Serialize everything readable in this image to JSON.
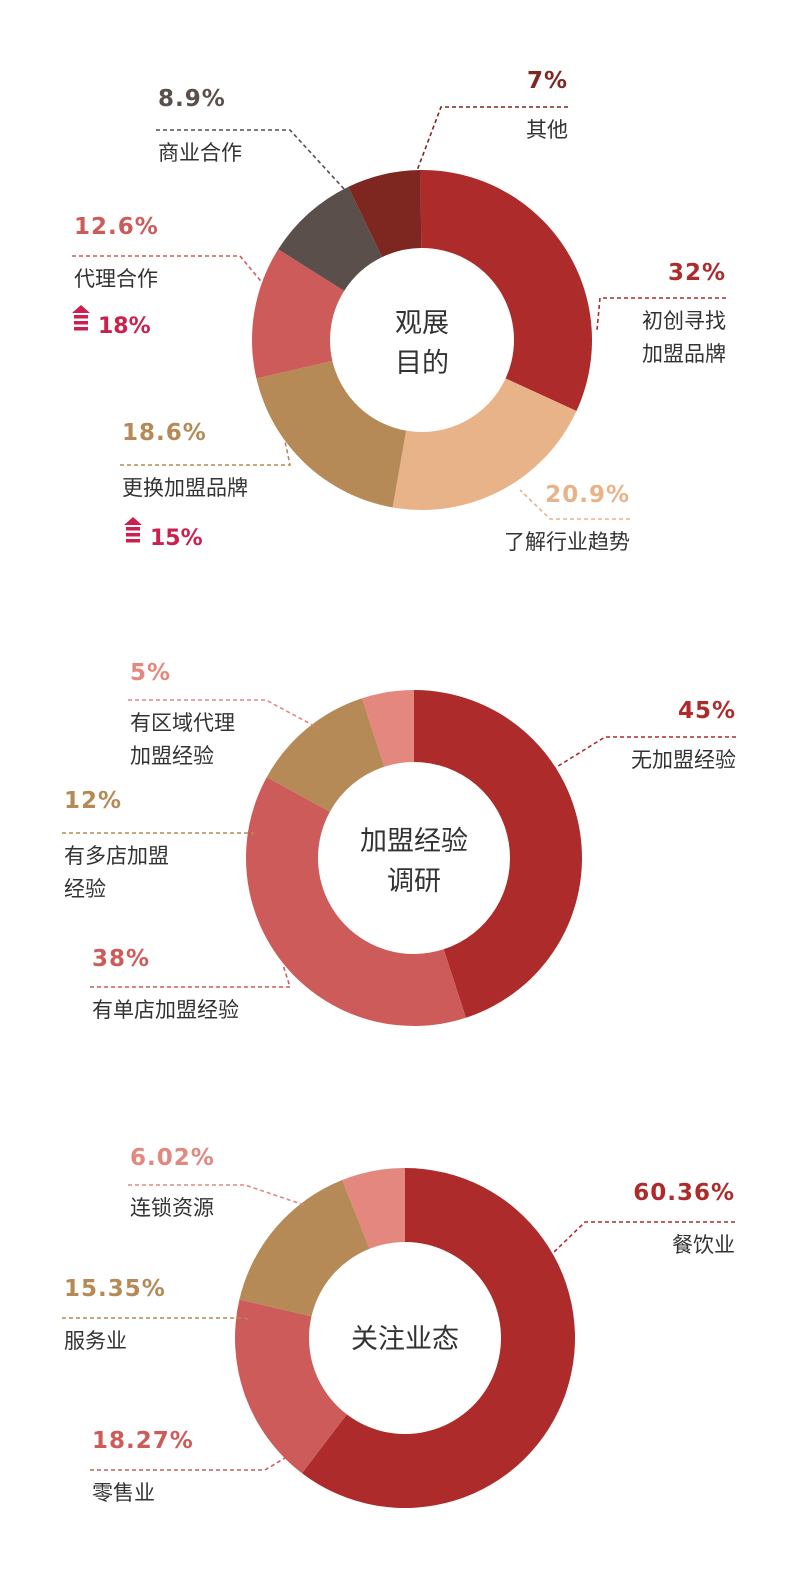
{
  "chart_data": [
    {
      "type": "pie",
      "title": "观展目的",
      "slices": [
        {
          "label": "初创寻找加盟品牌",
          "value": 32,
          "display": "32%",
          "color": "#ad2b2a"
        },
        {
          "label": "了解行业趋势",
          "value": 20.9,
          "display": "20.9%",
          "color": "#e9b38a"
        },
        {
          "label": "更换加盟品牌",
          "value": 18.6,
          "display": "18.6%",
          "color": "#b58a57",
          "increase": "15%"
        },
        {
          "label": "代理合作",
          "value": 12.6,
          "display": "12.6%",
          "color": "#cd5b59",
          "increase": "18%"
        },
        {
          "label": "商业合作",
          "value": 8.9,
          "display": "8.9%",
          "color": "#5a4f4a"
        },
        {
          "label": "其他",
          "value": 7,
          "display": "7%",
          "color": "#7e2620"
        }
      ]
    },
    {
      "type": "pie",
      "title": "加盟经验调研",
      "slices": [
        {
          "label": "无加盟经验",
          "value": 45,
          "display": "45%",
          "color": "#ad2b2a"
        },
        {
          "label": "有单店加盟经验",
          "value": 38,
          "display": "38%",
          "color": "#cd5b59"
        },
        {
          "label": "有多店加盟经验",
          "value": 12,
          "display": "12%",
          "color": "#b58a57"
        },
        {
          "label": "有区域代理加盟经验",
          "value": 5,
          "display": "5%",
          "color": "#e3877f"
        }
      ]
    },
    {
      "type": "pie",
      "title": "关注业态",
      "slices": [
        {
          "label": "餐饮业",
          "value": 60.36,
          "display": "60.36%",
          "color": "#ad2b2a"
        },
        {
          "label": "零售业",
          "value": 18.27,
          "display": "18.27%",
          "color": "#cd5b59"
        },
        {
          "label": "服务业",
          "value": 15.35,
          "display": "15.35%",
          "color": "#b58a57"
        },
        {
          "label": "连锁资源",
          "value": 6.02,
          "display": "6.02%",
          "color": "#e3877f"
        }
      ]
    }
  ],
  "increase_color": "#cc1f4e"
}
